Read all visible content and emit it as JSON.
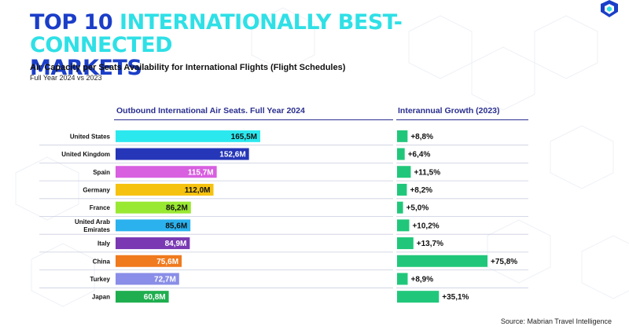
{
  "header": {
    "title_part1": "TOP 10 ",
    "title_part2": "INTERNATIONALLY BEST-CONNECTED",
    "title_part3": "MARKETS",
    "subtitle": "Air Capacity per Seats Availability for International Flights (Flight Schedules)",
    "subtitle2": "Full Year 2024 vs 2023",
    "logo": "shield-logo"
  },
  "chart_data": [
    {
      "type": "bar",
      "orientation": "horizontal",
      "title": "Outbound International Air Seats. Full Year 2024",
      "categories": [
        "United States",
        "United Kingdom",
        "Spain",
        "Germany",
        "France",
        "United Arab Emirates",
        "Italy",
        "China",
        "Turkey",
        "Japan"
      ],
      "values": [
        165.5,
        152.6,
        115.7,
        112.0,
        86.2,
        85.6,
        84.9,
        75.6,
        72.7,
        60.8
      ],
      "labels": [
        "165,5M",
        "152,6M",
        "115,7M",
        "112,0M",
        "86,2M",
        "85,6M",
        "84,9M",
        "75,6M",
        "72,7M",
        "60,8M"
      ],
      "colors": [
        "#2be8ee",
        "#2536b8",
        "#d85fe0",
        "#f5c20f",
        "#99e832",
        "#2bb2ee",
        "#7a39b3",
        "#f07a1e",
        "#8a8ee8",
        "#1fae4f"
      ],
      "label_colors": [
        "#111111",
        "#ffffff",
        "#ffffff",
        "#111111",
        "#111111",
        "#111111",
        "#ffffff",
        "#ffffff",
        "#ffffff",
        "#ffffff"
      ]
    },
    {
      "type": "bar",
      "orientation": "horizontal",
      "title": "Interannual Growth (2023)",
      "categories": [
        "United States",
        "United Kingdom",
        "Spain",
        "Germany",
        "France",
        "United Arab Emirates",
        "Italy",
        "China",
        "Turkey",
        "Japan"
      ],
      "values": [
        8.8,
        6.4,
        11.5,
        8.2,
        5.0,
        10.2,
        13.7,
        75.8,
        8.9,
        35.1
      ],
      "labels": [
        "+8,8%",
        "+6,4%",
        "+11,5%",
        "+8,2%",
        "+5,0%",
        "+10,2%",
        "+13,7%",
        "+75,8%",
        "+8,9%",
        "+35,1%"
      ],
      "color": "#20c77a"
    }
  ],
  "footer": {
    "source": "Source: Mabrian Travel Intelligence"
  }
}
